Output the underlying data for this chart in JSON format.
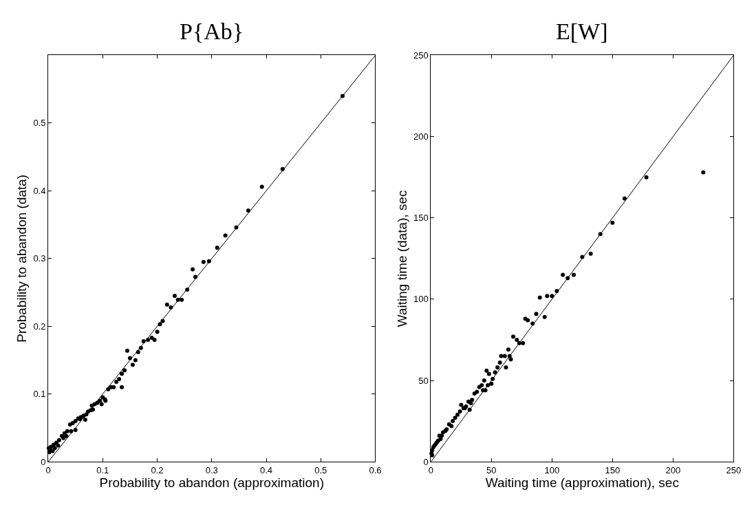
{
  "chart_data": [
    {
      "type": "scatter",
      "title": "P{Ab}",
      "xlabel": "Probability to abandon (approximation)",
      "ylabel": "Probability to abandon (data)",
      "xlim": [
        0,
        0.6
      ],
      "ylim": [
        0,
        0.6
      ],
      "xticks": [
        0,
        0.1,
        0.2,
        0.3,
        0.4,
        0.5,
        0.6
      ],
      "yticks": [
        0,
        0.1,
        0.2,
        0.3,
        0.4,
        0.5
      ],
      "marker": "circle",
      "series": [
        {
          "color": "#000000",
          "x": [
            0.54,
            0.43,
            0.392,
            0.367,
            0.345,
            0.325,
            0.31,
            0.295,
            0.285,
            0.27,
            0.265,
            0.255,
            0.245,
            0.238,
            0.232,
            0.225,
            0.218,
            0.21,
            0.205,
            0.2,
            0.195,
            0.19,
            0.183,
            0.175,
            0.17,
            0.165,
            0.16,
            0.155,
            0.15,
            0.145,
            0.14,
            0.135,
            0.13,
            0.125,
            0.12,
            0.115,
            0.11,
            0.105,
            0.1,
            0.095,
            0.09,
            0.085,
            0.08,
            0.078,
            0.073,
            0.07,
            0.065,
            0.06,
            0.055,
            0.05,
            0.045,
            0.04,
            0.035,
            0.03,
            0.025,
            0.02,
            0.015,
            0.01,
            0.005,
            0.003,
            0.001,
            0.002,
            0.008,
            0.012,
            0.018,
            0.028,
            0.033,
            0.042,
            0.05,
            0.058,
            0.068,
            0.082,
            0.098,
            0.104,
            0.135
          ],
          "values": [
            0.54,
            0.432,
            0.406,
            0.371,
            0.346,
            0.334,
            0.316,
            0.296,
            0.295,
            0.273,
            0.284,
            0.254,
            0.239,
            0.239,
            0.245,
            0.228,
            0.232,
            0.208,
            0.203,
            0.192,
            0.18,
            0.183,
            0.18,
            0.178,
            0.168,
            0.162,
            0.15,
            0.143,
            0.153,
            0.164,
            0.135,
            0.13,
            0.122,
            0.118,
            0.11,
            0.11,
            0.107,
            0.09,
            0.095,
            0.09,
            0.087,
            0.085,
            0.083,
            0.076,
            0.074,
            0.07,
            0.068,
            0.066,
            0.064,
            0.06,
            0.057,
            0.055,
            0.045,
            0.042,
            0.038,
            0.032,
            0.028,
            0.025,
            0.022,
            0.018,
            0.02,
            0.014,
            0.016,
            0.02,
            0.024,
            0.035,
            0.038,
            0.045,
            0.047,
            0.063,
            0.062,
            0.077,
            0.085,
            0.092,
            0.11
          ]
        },
        {
          "type": "line",
          "color": "#000000",
          "marker": "none",
          "line_style": "solid",
          "x": [
            0,
            0.6
          ],
          "values": [
            0,
            0.6
          ]
        }
      ]
    },
    {
      "type": "scatter",
      "title": "E[W]",
      "xlabel": "Waiting time (approximation), sec",
      "ylabel": "Waiting time (data), sec",
      "xlim": [
        0,
        250
      ],
      "ylim": [
        0,
        250
      ],
      "xticks": [
        0,
        50,
        100,
        150,
        200,
        250
      ],
      "yticks": [
        0,
        50,
        100,
        150,
        200,
        250
      ],
      "marker": "circle",
      "series": [
        {
          "color": "#000000",
          "x": [
            225,
            178,
            160,
            150,
            140,
            132,
            125,
            118,
            113,
            109,
            104,
            100,
            96,
            94,
            90,
            87,
            84,
            80,
            78,
            76,
            73,
            71,
            68,
            66,
            64,
            61,
            58,
            57,
            55,
            53,
            51,
            50,
            48,
            46,
            44,
            42,
            40,
            38,
            36,
            34,
            33,
            31,
            29,
            27,
            25,
            24,
            22,
            20,
            18,
            17,
            15,
            13,
            12,
            10,
            9,
            8,
            7,
            6,
            5,
            4,
            3,
            2,
            1,
            0.5,
            1,
            28,
            32,
            43,
            62,
            65,
            47,
            45
          ],
          "values": [
            178,
            175,
            162,
            147,
            140,
            128,
            126,
            115,
            113,
            115,
            105,
            102,
            102,
            89,
            101,
            91,
            85,
            87,
            88,
            73,
            73,
            75,
            77,
            63,
            69,
            65,
            65,
            61,
            58,
            55,
            51,
            48,
            54,
            56,
            50,
            47,
            46,
            43,
            42,
            38,
            36,
            37,
            34,
            33,
            35,
            31,
            29,
            27,
            25,
            22,
            23,
            20,
            19,
            18,
            16,
            14,
            16,
            13,
            12,
            11,
            10,
            9,
            7,
            5,
            4,
            33,
            32,
            44,
            58,
            65,
            47,
            44
          ]
        },
        {
          "type": "line",
          "color": "#000000",
          "marker": "none",
          "line_style": "solid",
          "x": [
            0,
            250
          ],
          "values": [
            0,
            250
          ]
        }
      ]
    }
  ]
}
